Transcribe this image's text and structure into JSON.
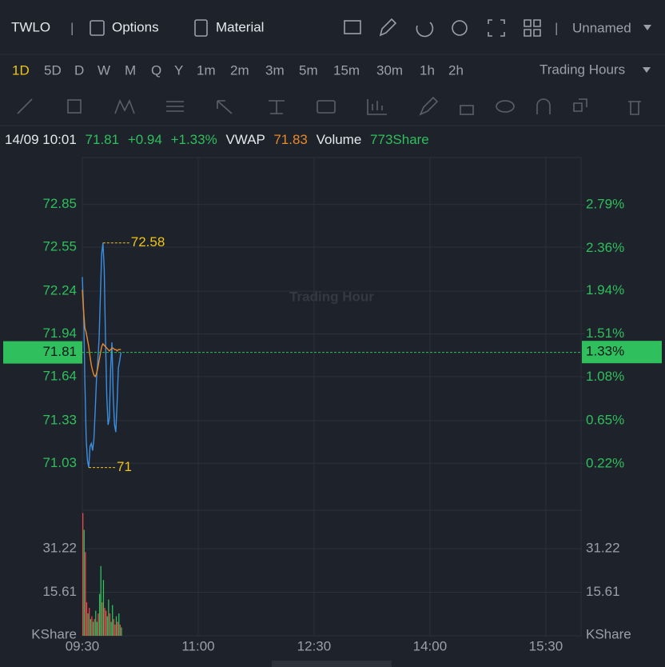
{
  "header": {
    "symbol": "TWLO",
    "separator": "|",
    "options": "Options",
    "material": "Material",
    "layout": "Unnamed"
  },
  "timeframes": [
    "1D",
    "5D",
    "D",
    "W",
    "M",
    "Q",
    "Y",
    "1m",
    "2m",
    "3m",
    "5m",
    "15m",
    "30m",
    "1h",
    "2h"
  ],
  "session": "Trading Hours",
  "quote": {
    "time": "14/09 10:01",
    "price": "71.81",
    "change": "+0.94",
    "change_pct": "+1.33%",
    "vwap_label": "VWAP",
    "vwap": "71.83",
    "volume_label": "Volume",
    "volume": "773Share"
  },
  "chart_data": [
    {
      "type": "line",
      "watermark": "Trading Hour",
      "x": [
        0,
        1,
        2,
        3,
        4,
        5,
        6,
        7,
        8,
        9,
        10,
        11,
        12,
        13,
        14,
        15,
        16,
        17,
        18,
        19,
        20,
        21,
        22,
        23,
        24,
        25,
        26,
        27,
        28,
        29,
        30
      ],
      "series": [
        {
          "name": "Price",
          "color": "#3b8fe0",
          "values": [
            72.34,
            72.1,
            71.6,
            71.2,
            71.05,
            71.0,
            71.15,
            71.17,
            71.12,
            71.2,
            71.4,
            71.62,
            71.75,
            71.9,
            72.2,
            72.5,
            72.58,
            72.4,
            71.9,
            71.5,
            71.3,
            71.35,
            71.7,
            71.88,
            71.5,
            71.3,
            71.25,
            71.45,
            71.7,
            71.75,
            71.81
          ]
        },
        {
          "name": "VWAP",
          "color": "#e8892b",
          "values": [
            72.25,
            72.1,
            71.98,
            71.95,
            71.9,
            71.85,
            71.78,
            71.72,
            71.68,
            71.65,
            71.64,
            71.66,
            71.7,
            71.75,
            71.8,
            71.85,
            71.87,
            71.86,
            71.85,
            71.84,
            71.83,
            71.82,
            71.83,
            71.84,
            71.84,
            71.83,
            71.83,
            71.82,
            71.83,
            71.83,
            71.83
          ]
        }
      ],
      "xlim": [
        0,
        388
      ],
      "ylim": [
        70.7,
        73.18
      ],
      "yticks": [
        72.85,
        72.55,
        72.24,
        71.94,
        71.64,
        71.33,
        71.03
      ],
      "y2lim": [
        -0.24,
        3.26
      ],
      "y2ticks": [
        {
          "value": 2.79,
          "label": "2.79%"
        },
        {
          "value": 2.36,
          "label": "2.36%"
        },
        {
          "value": 1.94,
          "label": "1.94%"
        },
        {
          "value": 1.51,
          "label": "1.51%"
        },
        {
          "value": 1.08,
          "label": "1.08%"
        },
        {
          "value": 0.65,
          "label": "0.65%"
        },
        {
          "value": 0.22,
          "label": "0.22%"
        }
      ],
      "last_value": 71.81,
      "last_pct": {
        "value": 1.33,
        "label": "1.33%"
      },
      "annotations": [
        {
          "x": 16,
          "value": 72.58
        },
        {
          "x": 5,
          "value": 71.0
        }
      ],
      "grid": true
    },
    {
      "type": "bar",
      "unit": "KShare",
      "x": [
        0,
        1,
        2,
        3,
        4,
        5,
        6,
        7,
        8,
        9,
        10,
        11,
        12,
        13,
        14,
        15,
        16,
        17,
        18,
        19,
        20,
        21,
        22,
        23,
        24,
        25,
        26,
        27,
        28,
        29,
        30
      ],
      "values": [
        44,
        38,
        30,
        12,
        8,
        10,
        6,
        7,
        5,
        6,
        9,
        5,
        8,
        15,
        25,
        12,
        20,
        10,
        9,
        7,
        13,
        8,
        5,
        11,
        6,
        4,
        7,
        5,
        8,
        4,
        3
      ],
      "colors": [
        "#e84a4a",
        "#2fbf5c",
        "#e84a4a",
        "#e84a4a",
        "#2fbf5c",
        "#e84a4a",
        "#2fbf5c",
        "#e84a4a",
        "#2fbf5c",
        "#e84a4a",
        "#2fbf5c",
        "#2fbf5c",
        "#e84a4a",
        "#2fbf5c",
        "#2fbf5c",
        "#e84a4a",
        "#2fbf5c",
        "#e84a4a",
        "#e84a4a",
        "#2fbf5c",
        "#2fbf5c",
        "#e84a4a",
        "#2fbf5c",
        "#2fbf5c",
        "#e84a4a",
        "#e84a4a",
        "#2fbf5c",
        "#e84a4a",
        "#2fbf5c",
        "#e84a4a",
        "#2fbf5c"
      ],
      "xlim": [
        0,
        388
      ],
      "ylim": [
        0,
        45
      ],
      "yticks": [
        31.22,
        15.61
      ],
      "xticks": [
        {
          "value": 0,
          "label": "09:30"
        },
        {
          "value": 90,
          "label": "11:00"
        },
        {
          "value": 180,
          "label": "12:30"
        },
        {
          "value": 270,
          "label": "14:00"
        },
        {
          "value": 360,
          "label": "15:30"
        }
      ],
      "grid": true
    }
  ]
}
